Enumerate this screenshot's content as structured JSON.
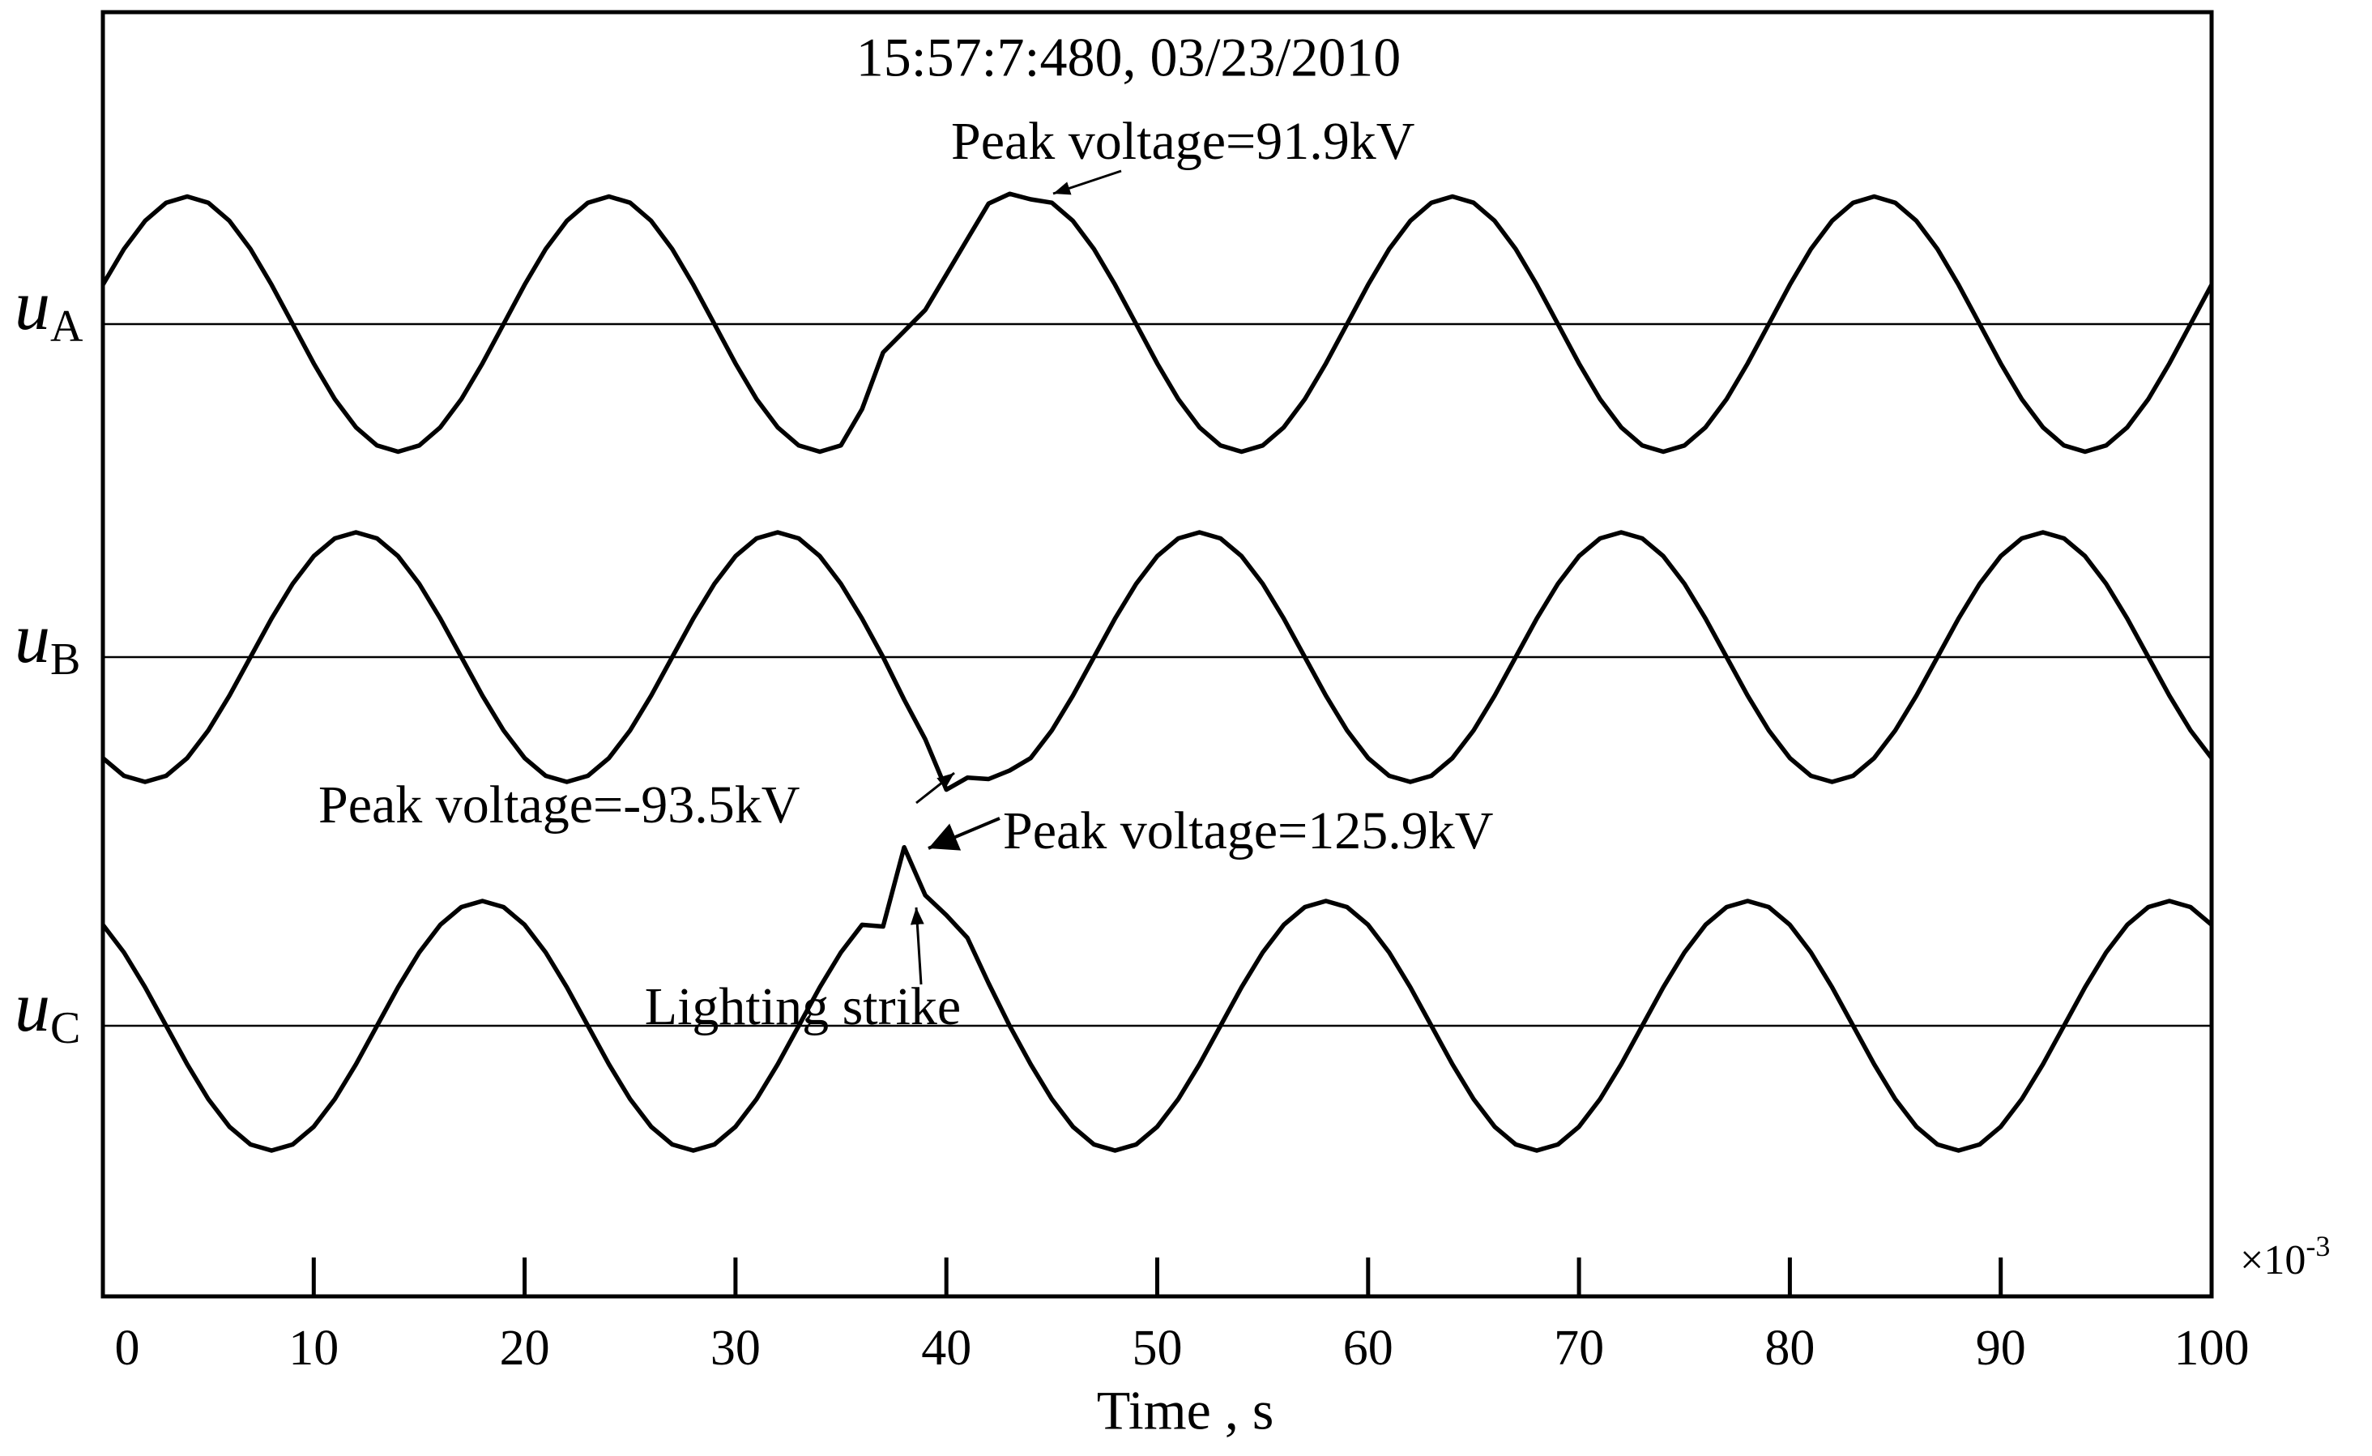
{
  "chart_data": {
    "type": "line",
    "title": "15:57:7:480, 03/23/2010",
    "x_label": "Time , s",
    "x_multiplier": "×10",
    "x_multiplier_exponent": "-3",
    "xlim": [
      0,
      100
    ],
    "xticks": [
      0,
      10,
      20,
      30,
      40,
      50,
      60,
      70,
      80,
      90,
      100
    ],
    "x": [
      0,
      1,
      2,
      3,
      4,
      5,
      6,
      7,
      8,
      9,
      10,
      11,
      12,
      13,
      14,
      15,
      16,
      17,
      18,
      19,
      20,
      21,
      22,
      23,
      24,
      25,
      26,
      27,
      28,
      29,
      30,
      31,
      32,
      33,
      34,
      35,
      36,
      37,
      38,
      39,
      40,
      41,
      42,
      43,
      44,
      45,
      46,
      47,
      48,
      49,
      50,
      51,
      52,
      53,
      54,
      55,
      56,
      57,
      58,
      59,
      60,
      61,
      62,
      63,
      64,
      65,
      66,
      67,
      68,
      69,
      70,
      71,
      72,
      73,
      74,
      75,
      76,
      77,
      78,
      79,
      80,
      81,
      82,
      83,
      84,
      85,
      86,
      87,
      88,
      89,
      90,
      91,
      92,
      93,
      94,
      95,
      96,
      97,
      98,
      99,
      100
    ],
    "series": [
      {
        "name": "u",
        "subscript": "A",
        "color": "#000000",
        "values": [
          27.8,
          52.9,
          72.8,
          85.6,
          90,
          85.6,
          72.8,
          52.9,
          27.8,
          0,
          -27.8,
          -52.9,
          -72.8,
          -85.6,
          -90,
          -85.6,
          -72.8,
          -52.9,
          -27.8,
          0,
          27.8,
          52.9,
          72.8,
          85.6,
          90,
          85.6,
          72.8,
          52.9,
          27.8,
          0,
          -27.8,
          -52.9,
          -72.8,
          -85.6,
          -90,
          -85.6,
          -60,
          -20,
          -5,
          10,
          35,
          60,
          85,
          91.9,
          88,
          85.6,
          72.8,
          52.9,
          27.8,
          0,
          -27.8,
          -52.9,
          -72.8,
          -85.6,
          -90,
          -85.6,
          -72.8,
          -52.9,
          -27.8,
          0,
          27.8,
          52.9,
          72.8,
          85.6,
          90,
          85.6,
          72.8,
          52.9,
          27.8,
          0,
          -27.8,
          -52.9,
          -72.8,
          -85.6,
          -90,
          -85.6,
          -72.8,
          -52.9,
          -27.8,
          0,
          27.8,
          52.9,
          72.8,
          85.6,
          90,
          85.6,
          72.8,
          52.9,
          27.8,
          0,
          -27.8,
          -52.9,
          -72.8,
          -85.6,
          -90,
          -85.6,
          -72.8,
          -52.9,
          -27.8,
          0,
          27.8
        ]
      },
      {
        "name": "u",
        "subscript": "B",
        "color": "#000000",
        "values": [
          -71.2,
          -83.7,
          -88,
          -83.7,
          -71.2,
          -51.7,
          -27.2,
          0,
          27.2,
          51.7,
          71.2,
          83.7,
          88,
          83.7,
          71.2,
          51.7,
          27.2,
          0,
          -27.2,
          -51.7,
          -71.2,
          -83.7,
          -88,
          -83.7,
          -71.2,
          -51.7,
          -27.2,
          0,
          27.2,
          51.7,
          71.2,
          83.7,
          88,
          83.7,
          71.2,
          51.7,
          27.2,
          0,
          -30,
          -58,
          -93.5,
          -85,
          -86,
          -80,
          -71.2,
          -51.7,
          -27.2,
          0,
          27.2,
          51.7,
          71.2,
          83.7,
          88,
          83.7,
          71.2,
          51.7,
          27.2,
          0,
          -27.2,
          -51.7,
          -71.2,
          -83.7,
          -88,
          -83.7,
          -71.2,
          -51.7,
          -27.2,
          0,
          27.2,
          51.7,
          71.2,
          83.7,
          88,
          83.7,
          71.2,
          51.7,
          27.2,
          0,
          -27.2,
          -51.7,
          -71.2,
          -83.7,
          -88,
          -83.7,
          -71.2,
          -51.7,
          -27.2,
          0,
          27.2,
          51.7,
          71.2,
          83.7,
          88,
          83.7,
          71.2,
          51.7,
          27.2,
          0,
          -27.2,
          -51.7,
          -71.2
        ]
      },
      {
        "name": "u",
        "subscript": "C",
        "color": "#000000",
        "values": [
          71.2,
          51.7,
          27.2,
          0,
          -27.2,
          -51.7,
          -71.2,
          -83.7,
          -88,
          -83.7,
          -71.2,
          -51.7,
          -27.2,
          0,
          27.2,
          51.7,
          71.2,
          83.7,
          88,
          83.7,
          71.2,
          51.7,
          27.2,
          0,
          -27.2,
          -51.7,
          -71.2,
          -83.7,
          -88,
          -83.7,
          -71.2,
          -51.7,
          -27.2,
          0,
          27.2,
          51.7,
          71.2,
          70,
          125.9,
          92,
          78,
          62,
          30,
          0,
          -27.2,
          -51.7,
          -71.2,
          -83.7,
          -88,
          -83.7,
          -71.2,
          -51.7,
          -27.2,
          0,
          27.2,
          51.7,
          71.2,
          83.7,
          88,
          83.7,
          71.2,
          51.7,
          27.2,
          0,
          -27.2,
          -51.7,
          -71.2,
          -83.7,
          -88,
          -83.7,
          -71.2,
          -51.7,
          -27.2,
          0,
          27.2,
          51.7,
          71.2,
          83.7,
          88,
          83.7,
          71.2,
          51.7,
          27.2,
          0,
          -27.2,
          -51.7,
          -71.2,
          -83.7,
          -88,
          -83.7,
          -71.2,
          -51.7,
          -27.2,
          0,
          27.2,
          51.7,
          71.2,
          83.7,
          88,
          83.7,
          71.2
        ]
      }
    ],
    "annotations": [
      "Peak voltage=91.9kV",
      "Peak voltage=-93.5kV",
      "Peak voltage=125.9kV",
      "Lighting strike"
    ]
  }
}
